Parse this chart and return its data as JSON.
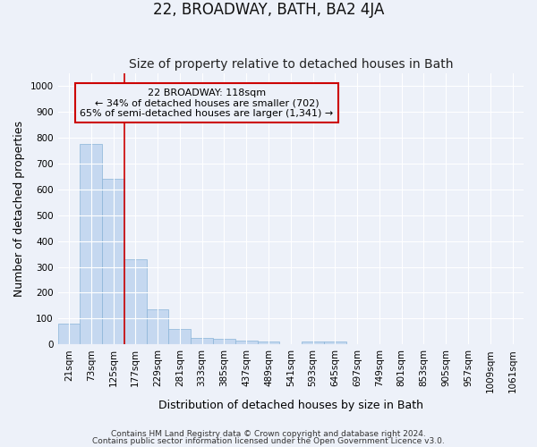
{
  "title": "22, BROADWAY, BATH, BA2 4JA",
  "subtitle": "Size of property relative to detached houses in Bath",
  "xlabel": "Distribution of detached houses by size in Bath",
  "ylabel": "Number of detached properties",
  "footnote1": "Contains HM Land Registry data © Crown copyright and database right 2024.",
  "footnote2": "Contains public sector information licensed under the Open Government Licence v3.0.",
  "annotation_line1": "22 BROADWAY: 118sqm",
  "annotation_line2": "← 34% of detached houses are smaller (702)",
  "annotation_line3": "65% of semi-detached houses are larger (1,341) →",
  "bar_color": "#c5d8f0",
  "bar_edge_color": "#8ab4d8",
  "background_color": "#edf1f9",
  "grid_color": "#ffffff",
  "red_line_color": "#cc0000",
  "annotation_box_color": "#cc0000",
  "categories": [
    "21sqm",
    "73sqm",
    "125sqm",
    "177sqm",
    "229sqm",
    "281sqm",
    "333sqm",
    "385sqm",
    "437sqm",
    "489sqm",
    "541sqm",
    "593sqm",
    "645sqm",
    "697sqm",
    "749sqm",
    "801sqm",
    "853sqm",
    "905sqm",
    "957sqm",
    "1009sqm",
    "1061sqm"
  ],
  "values": [
    82,
    775,
    643,
    330,
    135,
    60,
    25,
    20,
    15,
    10,
    0,
    10,
    10,
    0,
    0,
    0,
    0,
    0,
    0,
    0,
    0
  ],
  "red_line_x": 2.5,
  "ylim": [
    0,
    1050
  ],
  "yticks": [
    0,
    100,
    200,
    300,
    400,
    500,
    600,
    700,
    800,
    900,
    1000
  ],
  "title_fontsize": 12,
  "subtitle_fontsize": 10,
  "axis_label_fontsize": 9,
  "tick_fontsize": 7.5,
  "annotation_fontsize": 8,
  "footnote_fontsize": 6.5
}
